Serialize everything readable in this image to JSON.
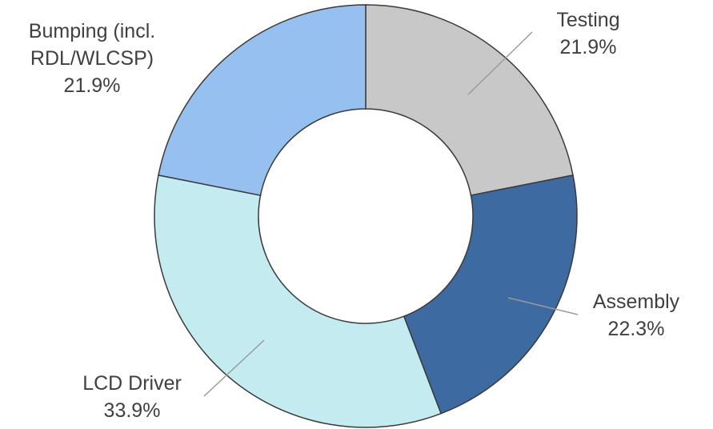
{
  "chart_data": {
    "type": "donut",
    "categories": [
      "Testing",
      "Assembly",
      "LCD Driver",
      "Bumping (incl. RDL/WLCSP)"
    ],
    "values": [
      21.9,
      22.3,
      33.9,
      21.9
    ],
    "value_labels": [
      "21.9%",
      "22.3%",
      "33.9%",
      "21.9%"
    ],
    "colors": [
      "#c8c8c8",
      "#3d6aa0",
      "#c4ecf0",
      "#95c0f0"
    ]
  }
}
